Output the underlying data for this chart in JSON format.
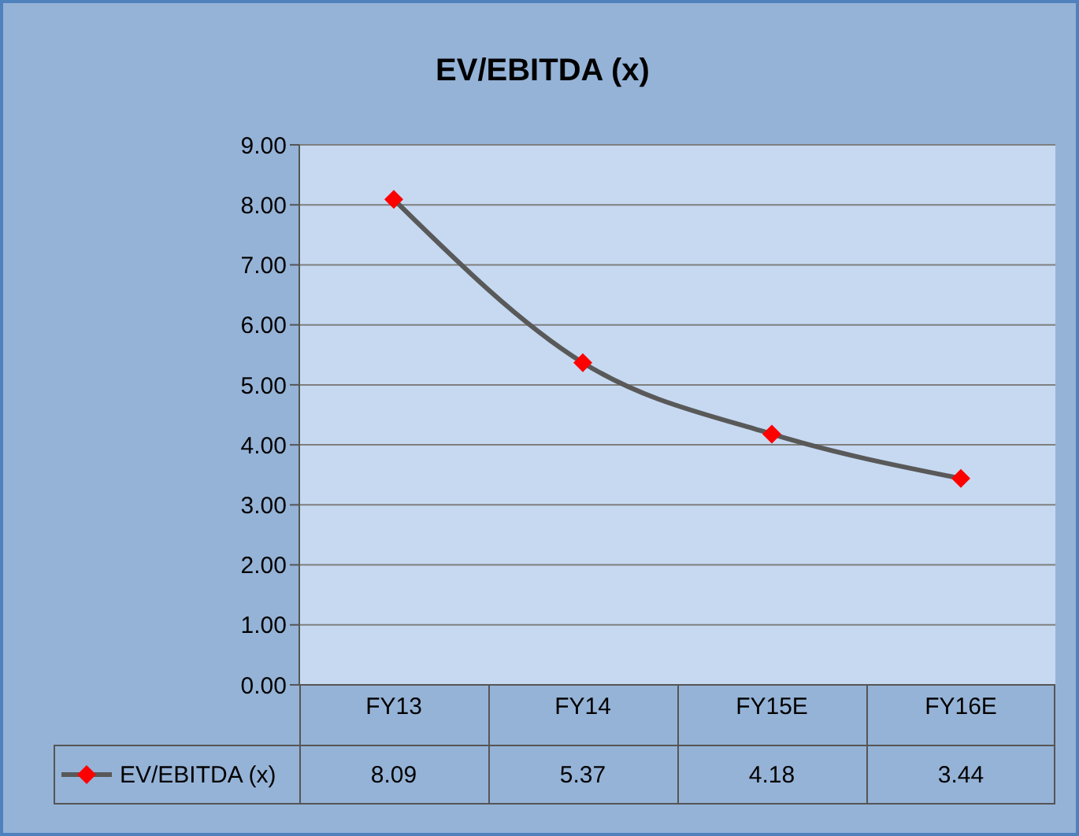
{
  "chart_data": {
    "type": "line",
    "title": "EV/EBITDA (x)",
    "categories": [
      "FY13",
      "FY14",
      "FY15E",
      "FY16E"
    ],
    "series": [
      {
        "name": "EV/EBITDA (x)",
        "color": "#595959",
        "values": [
          8.09,
          5.37,
          4.18,
          3.44
        ]
      }
    ],
    "ylim": [
      0,
      9
    ],
    "yticks": [
      {
        "value": 0,
        "label": "0.00"
      },
      {
        "value": 1,
        "label": "1.00"
      },
      {
        "value": 2,
        "label": "2.00"
      },
      {
        "value": 3,
        "label": "3.00"
      },
      {
        "value": 4,
        "label": "4.00"
      },
      {
        "value": 5,
        "label": "5.00"
      },
      {
        "value": 6,
        "label": "6.00"
      },
      {
        "value": 7,
        "label": "7.00"
      },
      {
        "value": 8,
        "label": "8.00"
      },
      {
        "value": 9,
        "label": "9.00"
      }
    ],
    "grid": "y",
    "legend": "bottom",
    "marker": "diamond",
    "line_style": "solid",
    "data_labels": true
  }
}
